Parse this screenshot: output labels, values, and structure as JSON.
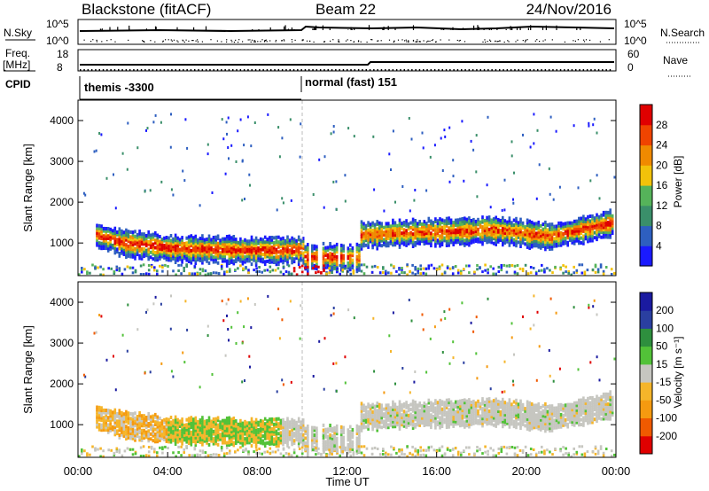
{
  "header": {
    "station": "Blackstone (fitACF)",
    "beam": "Beam 22",
    "date": "24/Nov/2016"
  },
  "summary_panels": {
    "nsky_label": "N.Sky",
    "nsearch_label": "N.Search",
    "nsky_ticks": [
      "10^5",
      "10^0"
    ],
    "nsearch_ticks": [
      "10^5",
      "10^0"
    ],
    "freq_label_1": "Freq.",
    "freq_label_2": "[MHz]",
    "freq_ticks": [
      "18",
      "8"
    ],
    "nave_label": "Nave",
    "nave_ticks": [
      "60",
      "0"
    ],
    "cpid_label": "CPID",
    "cpid_segments": [
      {
        "label": "themis -3300",
        "start_hour": 0
      },
      {
        "label": "normal (fast) 151",
        "start_hour": 10
      }
    ]
  },
  "colors": {
    "power": [
      "#1a1aff",
      "#2e5fc0",
      "#3a8f6a",
      "#55b35a",
      "#f2c20a",
      "#f08a00",
      "#f04400",
      "#e00000"
    ],
    "velocity": [
      "#e00000",
      "#f05a00",
      "#f59a10",
      "#f5b52a",
      "#c6c6c0",
      "#52c238",
      "#2e8f3e",
      "#2a3fa0",
      "#1a1aa0"
    ]
  },
  "chart_data": [
    {
      "type": "heatmap",
      "name": "power",
      "ylabel": "Slant Range [km]",
      "yticks": [
        "1000",
        "2000",
        "3000",
        "4000"
      ],
      "ylim": [
        200,
        4500
      ],
      "xlim_hours": [
        0,
        24
      ],
      "colorbar_label": "Power [dB]",
      "colorbar_ticks": [
        "4",
        "8",
        "12",
        "16",
        "20",
        "24",
        "28"
      ],
      "colorbar_range": [
        0,
        30
      ]
    },
    {
      "type": "heatmap",
      "name": "velocity",
      "ylabel": "Slant Range [km]",
      "yticks": [
        "1000",
        "2000",
        "3000",
        "4000"
      ],
      "ylim": [
        200,
        4500
      ],
      "xlim_hours": [
        0,
        24
      ],
      "colorbar_label": "Velocity [m s⁻¹]",
      "colorbar_ticks": [
        "-200",
        "-100",
        "-50",
        "-15",
        "15",
        "50",
        "100",
        "200"
      ],
      "colorbar_range": [
        -250,
        250
      ]
    }
  ],
  "x_axis": {
    "ticks": [
      "00:00",
      "04:00",
      "08:00",
      "12:00",
      "16:00",
      "20:00",
      "00:00"
    ],
    "label": "Time UT"
  }
}
